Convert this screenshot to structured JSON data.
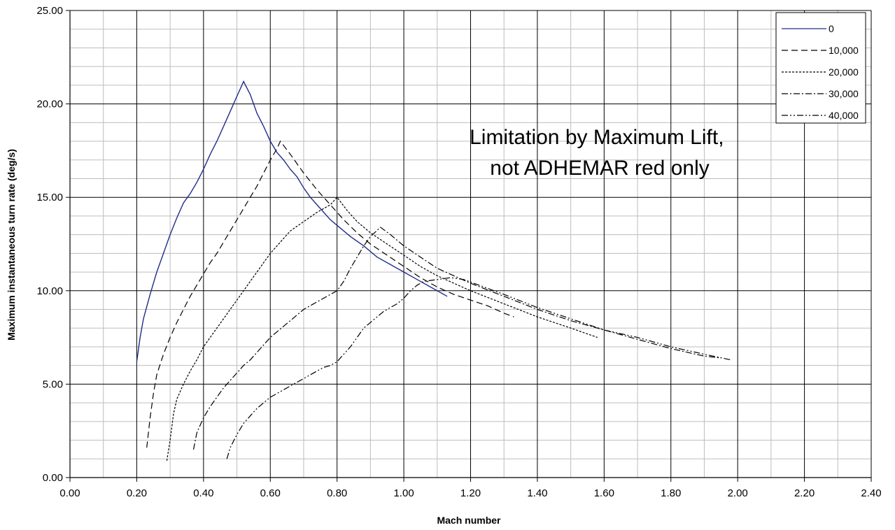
{
  "chart_data": {
    "type": "line",
    "title": "",
    "xlabel": "Mach number",
    "ylabel": "Maximum instantaneous  turn rate (deg/s)",
    "xlim": [
      0,
      2.4
    ],
    "ylim": [
      0,
      25
    ],
    "xticks": [
      "0.00",
      "0.20",
      "0.40",
      "0.60",
      "0.80",
      "1.00",
      "1.20",
      "1.40",
      "1.60",
      "1.80",
      "2.00",
      "2.20",
      "2.40"
    ],
    "yticks": [
      "0.00",
      "5.00",
      "10.00",
      "15.00",
      "20.00",
      "25.00"
    ],
    "grid": true,
    "legend_position": "top-right",
    "annotation": [
      "Limitation by Maximum Lift,",
      "not ADHEMAR red only"
    ],
    "series": [
      {
        "name": "0",
        "color": "#1f2d8a",
        "dash": "solid",
        "points": [
          [
            0.2,
            6.2
          ],
          [
            0.21,
            7.5
          ],
          [
            0.22,
            8.5
          ],
          [
            0.24,
            9.8
          ],
          [
            0.26,
            11
          ],
          [
            0.28,
            12
          ],
          [
            0.3,
            13
          ],
          [
            0.32,
            13.9
          ],
          [
            0.34,
            14.7
          ],
          [
            0.36,
            15.2
          ],
          [
            0.38,
            15.8
          ],
          [
            0.4,
            16.5
          ],
          [
            0.42,
            17.3
          ],
          [
            0.44,
            18
          ],
          [
            0.46,
            18.8
          ],
          [
            0.48,
            19.6
          ],
          [
            0.5,
            20.4
          ],
          [
            0.52,
            21.2
          ],
          [
            0.54,
            20.5
          ],
          [
            0.56,
            19.5
          ],
          [
            0.58,
            18.8
          ],
          [
            0.6,
            18.0
          ],
          [
            0.62,
            17.4
          ],
          [
            0.64,
            17.0
          ],
          [
            0.66,
            16.5
          ],
          [
            0.68,
            16.1
          ],
          [
            0.7,
            15.5
          ],
          [
            0.72,
            15.0
          ],
          [
            0.74,
            14.6
          ],
          [
            0.76,
            14.2
          ],
          [
            0.78,
            13.8
          ],
          [
            0.8,
            13.5
          ],
          [
            0.84,
            12.9
          ],
          [
            0.88,
            12.4
          ],
          [
            0.92,
            11.8
          ],
          [
            0.96,
            11.4
          ],
          [
            1.0,
            11.0
          ],
          [
            1.04,
            10.6
          ],
          [
            1.08,
            10.2
          ],
          [
            1.1,
            10.0
          ],
          [
            1.13,
            9.7
          ]
        ]
      },
      {
        "name": "10,000",
        "color": "#000000",
        "dash": "9,5",
        "points": [
          [
            0.23,
            1.6
          ],
          [
            0.24,
            3.2
          ],
          [
            0.25,
            4.5
          ],
          [
            0.26,
            5.5
          ],
          [
            0.28,
            6.6
          ],
          [
            0.3,
            7.5
          ],
          [
            0.32,
            8.3
          ],
          [
            0.34,
            9.0
          ],
          [
            0.36,
            9.7
          ],
          [
            0.38,
            10.3
          ],
          [
            0.4,
            10.9
          ],
          [
            0.42,
            11.5
          ],
          [
            0.44,
            12.0
          ],
          [
            0.46,
            12.6
          ],
          [
            0.48,
            13.2
          ],
          [
            0.5,
            13.8
          ],
          [
            0.52,
            14.4
          ],
          [
            0.54,
            15.0
          ],
          [
            0.56,
            15.6
          ],
          [
            0.58,
            16.3
          ],
          [
            0.6,
            17.0
          ],
          [
            0.62,
            17.6
          ],
          [
            0.63,
            18.0
          ],
          [
            0.66,
            17.3
          ],
          [
            0.7,
            16.3
          ],
          [
            0.74,
            15.4
          ],
          [
            0.78,
            14.6
          ],
          [
            0.82,
            13.8
          ],
          [
            0.86,
            13.1
          ],
          [
            0.9,
            12.5
          ],
          [
            0.95,
            11.9
          ],
          [
            1.0,
            11.3
          ],
          [
            1.05,
            10.7
          ],
          [
            1.1,
            10.2
          ],
          [
            1.15,
            9.8
          ],
          [
            1.2,
            9.5
          ],
          [
            1.25,
            9.2
          ],
          [
            1.3,
            8.8
          ],
          [
            1.33,
            8.6
          ]
        ]
      },
      {
        "name": "20,000",
        "color": "#000000",
        "dash": "3,2",
        "points": [
          [
            0.29,
            0.9
          ],
          [
            0.3,
            2.0
          ],
          [
            0.31,
            3.4
          ],
          [
            0.32,
            4.2
          ],
          [
            0.34,
            5.0
          ],
          [
            0.36,
            5.7
          ],
          [
            0.38,
            6.3
          ],
          [
            0.4,
            7.0
          ],
          [
            0.42,
            7.5
          ],
          [
            0.44,
            8.0
          ],
          [
            0.46,
            8.5
          ],
          [
            0.48,
            9.0
          ],
          [
            0.5,
            9.5
          ],
          [
            0.52,
            10.0
          ],
          [
            0.54,
            10.5
          ],
          [
            0.56,
            11.0
          ],
          [
            0.58,
            11.5
          ],
          [
            0.6,
            12.0
          ],
          [
            0.62,
            12.4
          ],
          [
            0.64,
            12.8
          ],
          [
            0.66,
            13.2
          ],
          [
            0.7,
            13.7
          ],
          [
            0.74,
            14.2
          ],
          [
            0.78,
            14.6
          ],
          [
            0.8,
            15.0
          ],
          [
            0.83,
            14.3
          ],
          [
            0.86,
            13.7
          ],
          [
            0.9,
            13.1
          ],
          [
            0.95,
            12.5
          ],
          [
            1.0,
            11.9
          ],
          [
            1.05,
            11.3
          ],
          [
            1.1,
            10.8
          ],
          [
            1.15,
            10.4
          ],
          [
            1.2,
            10.0
          ],
          [
            1.3,
            9.3
          ],
          [
            1.4,
            8.6
          ],
          [
            1.5,
            8.0
          ],
          [
            1.58,
            7.5
          ]
        ]
      },
      {
        "name": "30,000",
        "color": "#000000",
        "dash": "9,3,2,3",
        "points": [
          [
            0.37,
            1.5
          ],
          [
            0.38,
            2.4
          ],
          [
            0.4,
            3.2
          ],
          [
            0.42,
            3.8
          ],
          [
            0.44,
            4.3
          ],
          [
            0.46,
            4.8
          ],
          [
            0.48,
            5.2
          ],
          [
            0.5,
            5.6
          ],
          [
            0.52,
            6.0
          ],
          [
            0.54,
            6.3
          ],
          [
            0.56,
            6.7
          ],
          [
            0.58,
            7.1
          ],
          [
            0.6,
            7.5
          ],
          [
            0.62,
            7.8
          ],
          [
            0.64,
            8.1
          ],
          [
            0.66,
            8.4
          ],
          [
            0.68,
            8.7
          ],
          [
            0.7,
            9.0
          ],
          [
            0.74,
            9.4
          ],
          [
            0.78,
            9.8
          ],
          [
            0.8,
            10.0
          ],
          [
            0.82,
            10.5
          ],
          [
            0.84,
            11.2
          ],
          [
            0.86,
            11.8
          ],
          [
            0.88,
            12.4
          ],
          [
            0.9,
            12.9
          ],
          [
            0.93,
            13.4
          ],
          [
            0.96,
            13.0
          ],
          [
            1.0,
            12.4
          ],
          [
            1.05,
            11.8
          ],
          [
            1.1,
            11.2
          ],
          [
            1.15,
            10.8
          ],
          [
            1.2,
            10.4
          ],
          [
            1.3,
            9.7
          ],
          [
            1.4,
            9.0
          ],
          [
            1.5,
            8.4
          ],
          [
            1.6,
            7.9
          ],
          [
            1.7,
            7.4
          ],
          [
            1.8,
            6.9
          ],
          [
            1.9,
            6.5
          ],
          [
            1.95,
            6.4
          ]
        ]
      },
      {
        "name": "40,000",
        "color": "#000000",
        "dash": "9,3,2,3,2,3",
        "points": [
          [
            0.47,
            1.0
          ],
          [
            0.48,
            1.6
          ],
          [
            0.5,
            2.3
          ],
          [
            0.52,
            2.9
          ],
          [
            0.54,
            3.3
          ],
          [
            0.56,
            3.7
          ],
          [
            0.58,
            4.0
          ],
          [
            0.6,
            4.3
          ],
          [
            0.62,
            4.5
          ],
          [
            0.64,
            4.7
          ],
          [
            0.66,
            4.9
          ],
          [
            0.68,
            5.1
          ],
          [
            0.7,
            5.3
          ],
          [
            0.72,
            5.5
          ],
          [
            0.74,
            5.7
          ],
          [
            0.76,
            5.9
          ],
          [
            0.78,
            6.0
          ],
          [
            0.8,
            6.2
          ],
          [
            0.82,
            6.6
          ],
          [
            0.84,
            7.0
          ],
          [
            0.86,
            7.5
          ],
          [
            0.88,
            8.0
          ],
          [
            0.9,
            8.3
          ],
          [
            0.92,
            8.6
          ],
          [
            0.94,
            8.9
          ],
          [
            0.96,
            9.1
          ],
          [
            0.98,
            9.3
          ],
          [
            1.0,
            9.6
          ],
          [
            1.02,
            10.0
          ],
          [
            1.04,
            10.3
          ],
          [
            1.06,
            10.5
          ],
          [
            1.1,
            10.6
          ],
          [
            1.14,
            10.7
          ],
          [
            1.18,
            10.6
          ],
          [
            1.24,
            10.2
          ],
          [
            1.3,
            9.8
          ],
          [
            1.4,
            9.1
          ],
          [
            1.5,
            8.5
          ],
          [
            1.6,
            7.9
          ],
          [
            1.7,
            7.5
          ],
          [
            1.8,
            7.0
          ],
          [
            1.9,
            6.6
          ],
          [
            1.98,
            6.3
          ]
        ]
      }
    ]
  }
}
